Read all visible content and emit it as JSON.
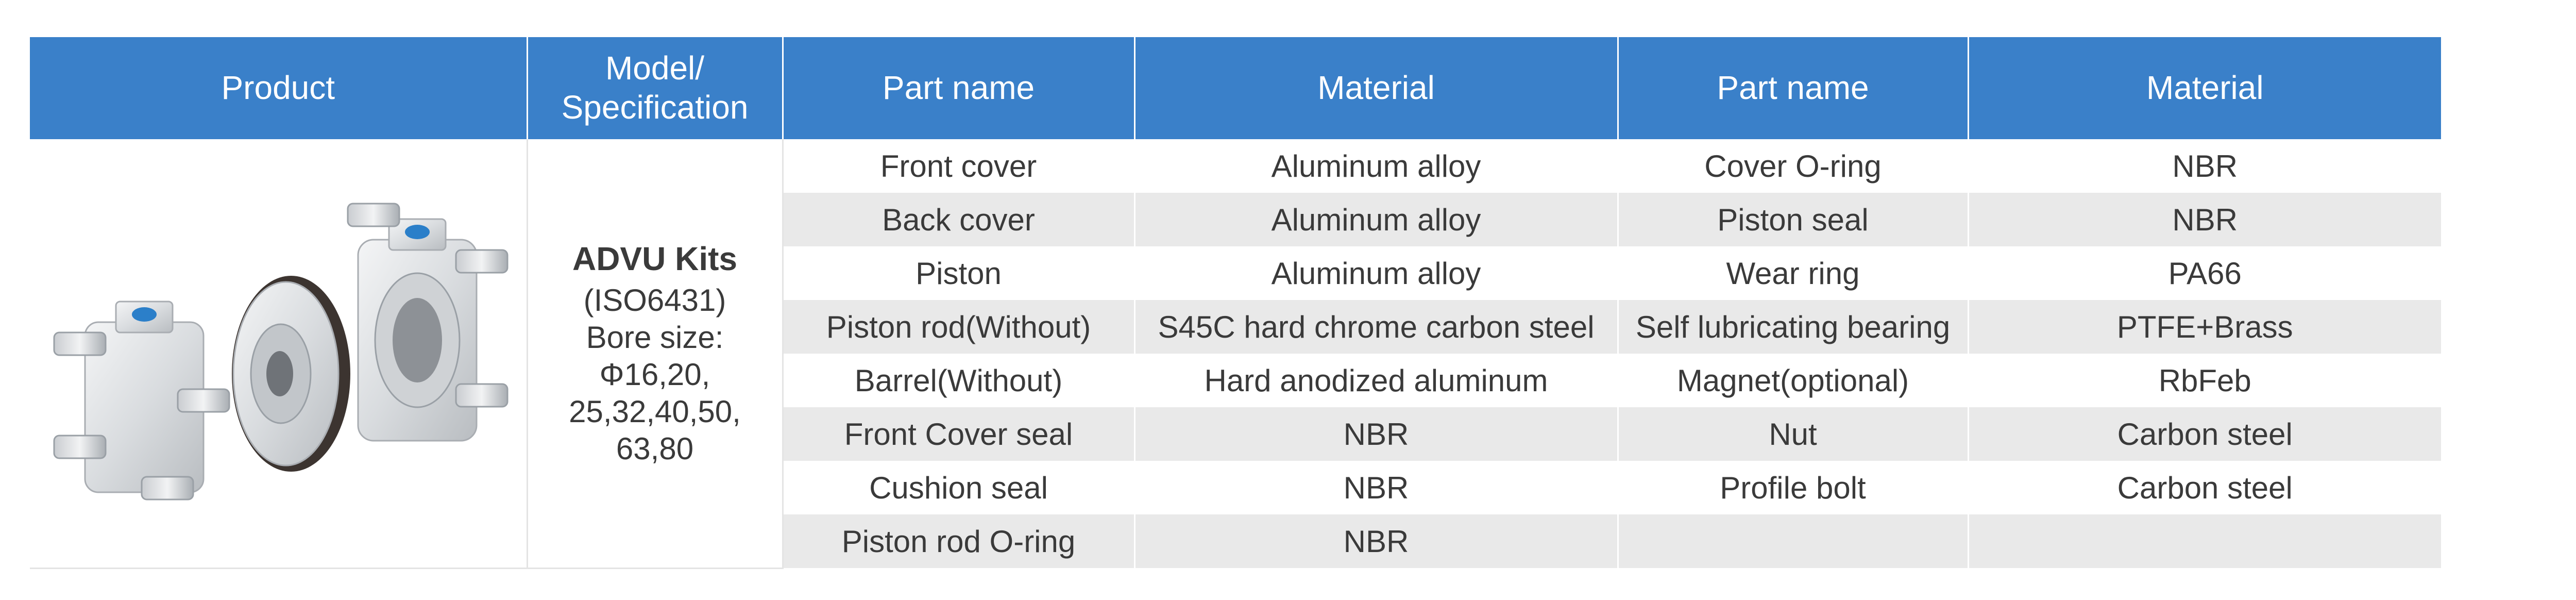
{
  "headers": [
    "Product",
    "Model/\nSpecification",
    "Part name",
    "Material",
    "Part name",
    "Material"
  ],
  "model": {
    "title": "ADVU Kits",
    "standard": "(ISO6431)",
    "bore_label": "Bore size:",
    "bore_line1": "Φ16,20,",
    "bore_line2": "25,32,40,50,",
    "bore_line3": "63,80"
  },
  "product_image": {
    "icon": "cylinder-kit-parts-image",
    "colors": {
      "body": "#e6e8ea",
      "accent": "#2b7fc9",
      "seal": "#3c3430"
    }
  },
  "rows": [
    {
      "part1": "Front cover",
      "material1": "Aluminum alloy",
      "part2": "Cover O-ring",
      "material2": "NBR"
    },
    {
      "part1": "Back cover",
      "material1": "Aluminum alloy",
      "part2": "Piston seal",
      "material2": "NBR"
    },
    {
      "part1": "Piston",
      "material1": "Aluminum alloy",
      "part2": "Wear ring",
      "material2": "PA66"
    },
    {
      "part1": "Piston rod(Without)",
      "material1": "S45C hard chrome carbon steel",
      "part2": "Self lubricating bearing",
      "material2": "PTFE+Brass"
    },
    {
      "part1": "Barrel(Without)",
      "material1": "Hard anodized aluminum",
      "part2": "Magnet(optional)",
      "material2": "RbFeb"
    },
    {
      "part1": "Front Cover seal",
      "material1": "NBR",
      "part2": "Nut",
      "material2": "Carbon steel"
    },
    {
      "part1": "Cushion seal",
      "material1": "NBR",
      "part2": "Profile bolt",
      "material2": "Carbon steel"
    },
    {
      "part1": "Piston rod O-ring",
      "material1": "NBR",
      "part2": "",
      "material2": ""
    }
  ],
  "style": {
    "header_bg": "#3a80c9",
    "stripe_bg": "#e9e9e9"
  }
}
